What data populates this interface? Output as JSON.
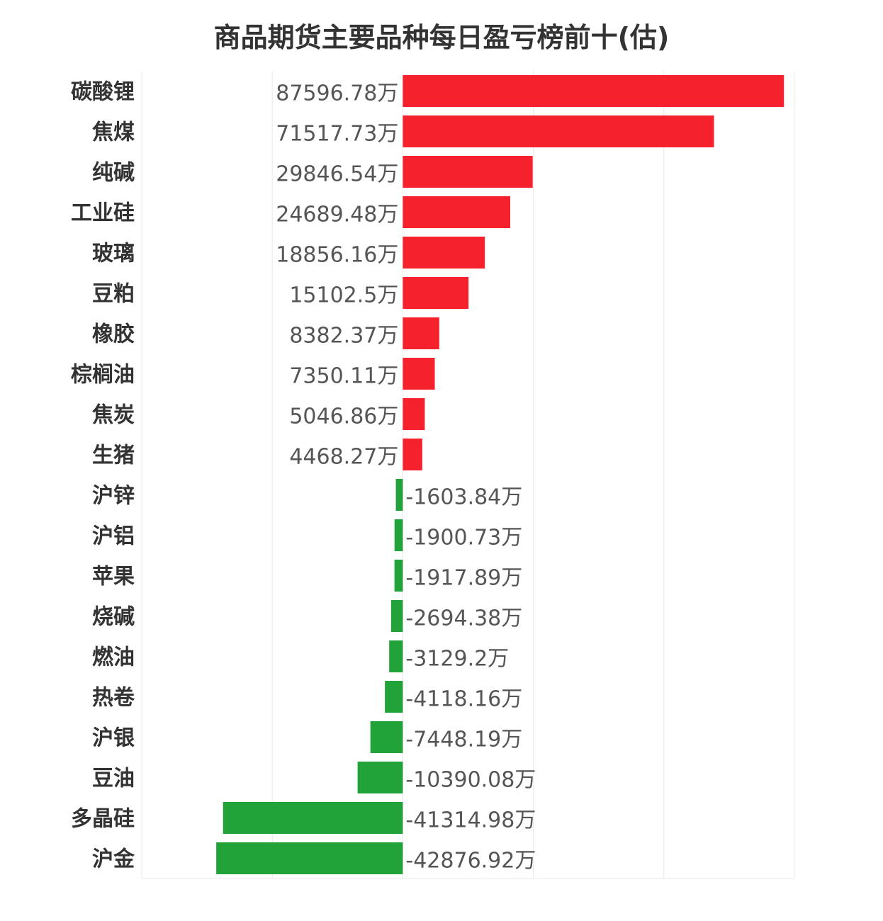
{
  "title": "商品期货主要品种每日盈亏榜前十(估)",
  "chart_data": {
    "type": "bar",
    "orientation": "horizontal",
    "title": "商品期货主要品种每日盈亏榜前十(估)",
    "unit_suffix": "万",
    "categories": [
      "碳酸锂",
      "焦煤",
      "纯碱",
      "工业硅",
      "玻璃",
      "豆粕",
      "橡胶",
      "棕榈油",
      "焦炭",
      "生猪",
      "沪锌",
      "沪铝",
      "苹果",
      "烧碱",
      "燃油",
      "热卷",
      "沪银",
      "豆油",
      "多晶硅",
      "沪金"
    ],
    "values": [
      87596.78,
      71517.73,
      29846.54,
      24689.48,
      18856.16,
      15102.5,
      8382.37,
      7350.11,
      5046.86,
      4468.27,
      -1603.84,
      -1900.73,
      -1917.89,
      -2694.38,
      -3129.2,
      -4118.16,
      -7448.19,
      -10390.08,
      -41314.98,
      -42876.92
    ],
    "labels": [
      "87596.78万",
      "71517.73万",
      "29846.54万",
      "24689.48万",
      "18856.16万",
      "15102.5万",
      "8382.37万",
      "7350.11万",
      "5046.86万",
      "4468.27万",
      "-1603.84万",
      "-1900.73万",
      "-1917.89万",
      "-2694.38万",
      "-3129.2万",
      "-4118.16万",
      "-7448.19万",
      "-10390.08万",
      "-41314.98万",
      "-42876.92万"
    ],
    "xlim": [
      -60000,
      90000
    ],
    "grid": true,
    "colors": {
      "positive": "#f5222d",
      "negative": "#22a33a",
      "grid": "#e8e8e8"
    }
  }
}
